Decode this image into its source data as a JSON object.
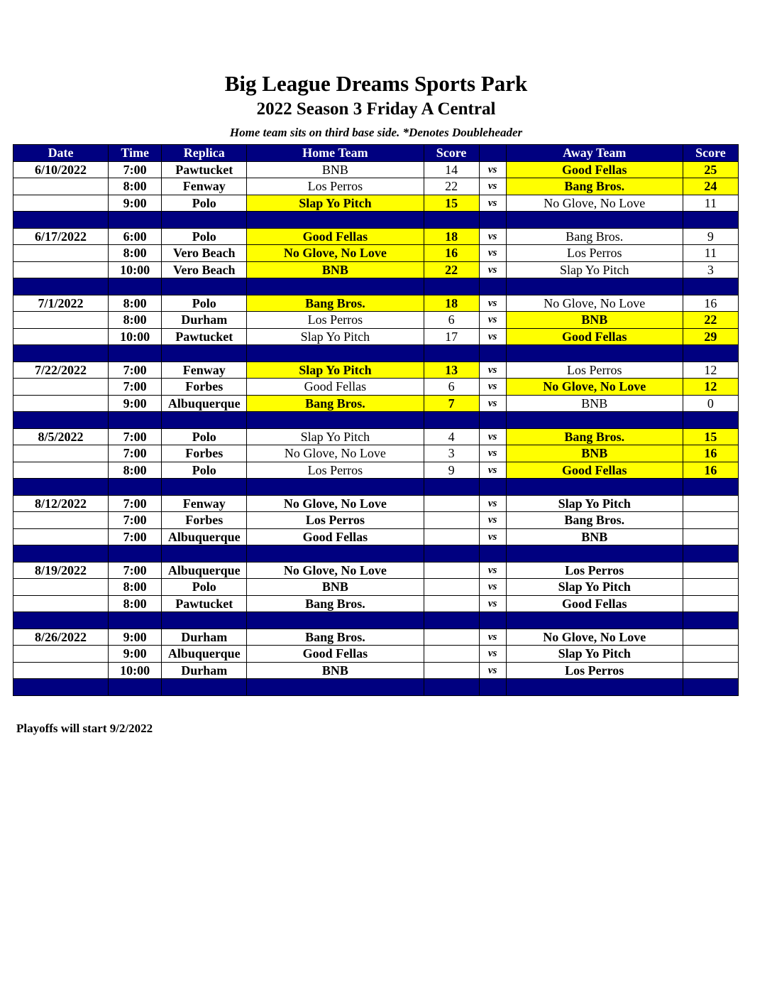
{
  "title": "Big League Dreams Sports Park",
  "subtitle": "2022 Season 3 Friday A Central",
  "note": "Home team sits on third base side.  *Denotes Doubleheader",
  "headers": [
    "Date",
    "Time",
    "Replica",
    "Home Team",
    "Score",
    "",
    "Away Team",
    "Score"
  ],
  "vs_label": "vs",
  "highlight_color": "#ffff00",
  "header_color": "#000080",
  "weeks": [
    {
      "date": "6/10/2022",
      "games": [
        {
          "time": "7:00",
          "replica": "Pawtucket",
          "home": "BNB",
          "home_score": "14",
          "away": "Good Fellas",
          "away_score": "25",
          "winner": "away"
        },
        {
          "time": "8:00",
          "replica": "Fenway",
          "home": "Los Perros",
          "home_score": "22",
          "away": "Bang Bros.",
          "away_score": "24",
          "winner": "away"
        },
        {
          "time": "9:00",
          "replica": "Polo",
          "home": "Slap Yo Pitch",
          "home_score": "15",
          "away": "No Glove, No Love",
          "away_score": "11",
          "winner": "home"
        }
      ]
    },
    {
      "date": "6/17/2022",
      "games": [
        {
          "time": "6:00",
          "replica": "Polo",
          "home": "Good Fellas",
          "home_score": "18",
          "away": "Bang Bros.",
          "away_score": "9",
          "winner": "home"
        },
        {
          "time": "8:00",
          "replica": "Vero Beach",
          "home": "No Glove, No Love",
          "home_score": "16",
          "away": "Los Perros",
          "away_score": "11",
          "winner": "home"
        },
        {
          "time": "10:00",
          "replica": "Vero Beach",
          "home": "BNB",
          "home_score": "22",
          "away": "Slap Yo Pitch",
          "away_score": "3",
          "winner": "home"
        }
      ]
    },
    {
      "date": "7/1/2022",
      "games": [
        {
          "time": "8:00",
          "replica": "Polo",
          "home": "Bang Bros.",
          "home_score": "18",
          "away": "No Glove, No Love",
          "away_score": "16",
          "winner": "home"
        },
        {
          "time": "8:00",
          "replica": "Durham",
          "home": "Los Perros",
          "home_score": "6",
          "away": "BNB",
          "away_score": "22",
          "winner": "away"
        },
        {
          "time": "10:00",
          "replica": "Pawtucket",
          "home": "Slap Yo Pitch",
          "home_score": "17",
          "away": "Good Fellas",
          "away_score": "29",
          "winner": "away"
        }
      ]
    },
    {
      "date": "7/22/2022",
      "games": [
        {
          "time": "7:00",
          "replica": "Fenway",
          "home": "Slap Yo Pitch",
          "home_score": "13",
          "away": "Los Perros",
          "away_score": "12",
          "winner": "home"
        },
        {
          "time": "7:00",
          "replica": "Forbes",
          "home": "Good Fellas",
          "home_score": "6",
          "away": "No Glove, No Love",
          "away_score": "12",
          "winner": "away"
        },
        {
          "time": "9:00",
          "replica": "Albuquerque",
          "home": "Bang Bros.",
          "home_score": "7",
          "away": "BNB",
          "away_score": "0",
          "winner": "home"
        }
      ]
    },
    {
      "date": "8/5/2022",
      "games": [
        {
          "time": "7:00",
          "replica": "Polo",
          "home": "Slap Yo Pitch",
          "home_score": "4",
          "away": "Bang Bros.",
          "away_score": "15",
          "winner": "away"
        },
        {
          "time": "7:00",
          "replica": "Forbes",
          "home": "No Glove, No Love",
          "home_score": "3",
          "away": "BNB",
          "away_score": "16",
          "winner": "away"
        },
        {
          "time": "8:00",
          "replica": "Polo",
          "home": "Los Perros",
          "home_score": "9",
          "away": "Good Fellas",
          "away_score": "16",
          "winner": "away"
        }
      ]
    },
    {
      "date": "8/12/2022",
      "games": [
        {
          "time": "7:00",
          "replica": "Fenway",
          "home": "No Glove, No Love",
          "home_score": "",
          "away": "Slap Yo Pitch",
          "away_score": "",
          "winner": null
        },
        {
          "time": "7:00",
          "replica": "Forbes",
          "home": "Los Perros",
          "home_score": "",
          "away": "Bang Bros.",
          "away_score": "",
          "winner": null
        },
        {
          "time": "7:00",
          "replica": "Albuquerque",
          "home": "Good Fellas",
          "home_score": "",
          "away": "BNB",
          "away_score": "",
          "winner": null
        }
      ]
    },
    {
      "date": "8/19/2022",
      "games": [
        {
          "time": "7:00",
          "replica": "Albuquerque",
          "home": "No Glove, No Love",
          "home_score": "",
          "away": "Los Perros",
          "away_score": "",
          "winner": null
        },
        {
          "time": "8:00",
          "replica": "Polo",
          "home": "BNB",
          "home_score": "",
          "away": "Slap Yo Pitch",
          "away_score": "",
          "winner": null
        },
        {
          "time": "8:00",
          "replica": "Pawtucket",
          "home": "Bang Bros.",
          "home_score": "",
          "away": "Good Fellas",
          "away_score": "",
          "winner": null
        }
      ]
    },
    {
      "date": "8/26/2022",
      "games": [
        {
          "time": "9:00",
          "replica": "Durham",
          "home": "Bang Bros.",
          "home_score": "",
          "away": "No Glove, No Love",
          "away_score": "",
          "winner": null
        },
        {
          "time": "9:00",
          "replica": "Albuquerque",
          "home": "Good Fellas",
          "home_score": "",
          "away": "Slap Yo Pitch",
          "away_score": "",
          "winner": null
        },
        {
          "time": "10:00",
          "replica": "Durham",
          "home": "BNB",
          "home_score": "",
          "away": "Los Perros",
          "away_score": "",
          "winner": null
        }
      ]
    }
  ],
  "footer": "Playoffs will start 9/2/2022"
}
